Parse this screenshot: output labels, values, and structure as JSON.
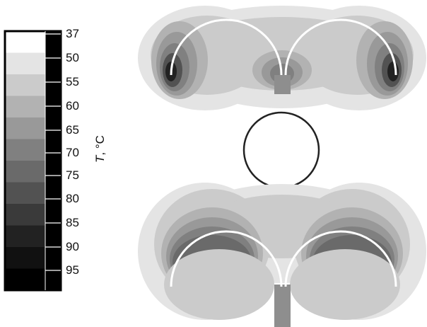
{
  "colorbar": {
    "ticks": [
      "37",
      "50",
      "55",
      "60",
      "65",
      "70",
      "75",
      "80",
      "85",
      "90",
      "95"
    ],
    "bands": [
      "#ffffff",
      "#e4e4e4",
      "#cbcbcb",
      "#b2b2b2",
      "#999999",
      "#808080",
      "#6a6a6a",
      "#525252",
      "#3a3a3a",
      "#222222",
      "#111111",
      "#000000"
    ],
    "title_symbol": "T",
    "title_unit": ", °C"
  },
  "palette": {
    "background": "#ffffff",
    "ring": "#222222",
    "arc": "#ffffff",
    "stem": "#8e8e8e"
  }
}
